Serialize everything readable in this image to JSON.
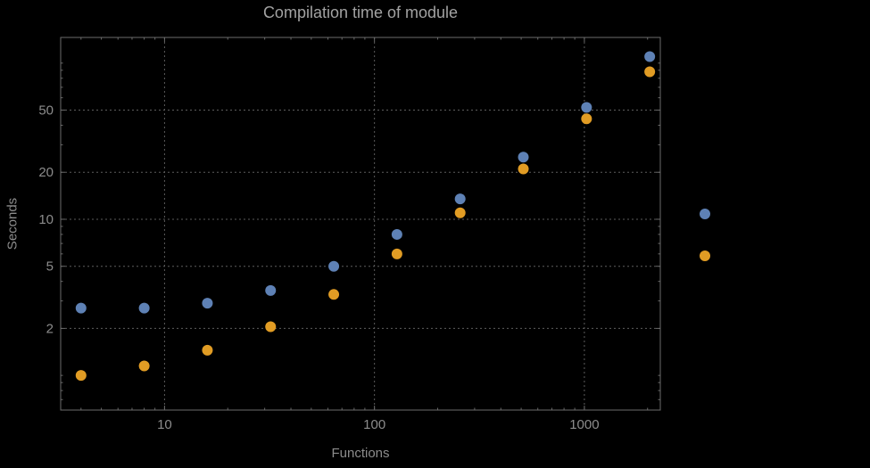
{
  "chart_data": {
    "type": "scatter",
    "title": "Compilation time of module",
    "xlabel": "Functions",
    "ylabel": "Seconds",
    "x_scale": "log",
    "y_scale": "log",
    "xlim": [
      3.2,
      2300
    ],
    "ylim": [
      0.6,
      146
    ],
    "grid": true,
    "grid_style": "dotted",
    "x": [
      4,
      8,
      16,
      32,
      64,
      128,
      256,
      512,
      1024,
      2048
    ],
    "series": [
      {
        "color": "#5E81B5",
        "values": [
          2.7,
          2.7,
          2.9,
          3.5,
          5.0,
          8.0,
          13.5,
          25,
          52,
          110
        ]
      },
      {
        "color": "#E19C24",
        "values": [
          1.0,
          1.15,
          1.45,
          2.05,
          3.3,
          6.0,
          11,
          21,
          44,
          88
        ]
      }
    ],
    "x_ticks": [
      {
        "value": 10,
        "label": "10"
      },
      {
        "value": 100,
        "label": "100"
      },
      {
        "value": 1000,
        "label": "1000"
      }
    ],
    "y_ticks": [
      {
        "value": 2,
        "label": "2"
      },
      {
        "value": 5,
        "label": "5"
      },
      {
        "value": 10,
        "label": "10"
      },
      {
        "value": 20,
        "label": "20"
      },
      {
        "value": 50,
        "label": "50"
      }
    ],
    "legend": {
      "position": "right-outside",
      "labels_visible": false,
      "marker_colors": [
        "#5E81B5",
        "#E19C24"
      ]
    },
    "frame_color": "#6b6b6b",
    "grid_color": "#5d5d5d",
    "label_color": "#8c8c8c"
  }
}
